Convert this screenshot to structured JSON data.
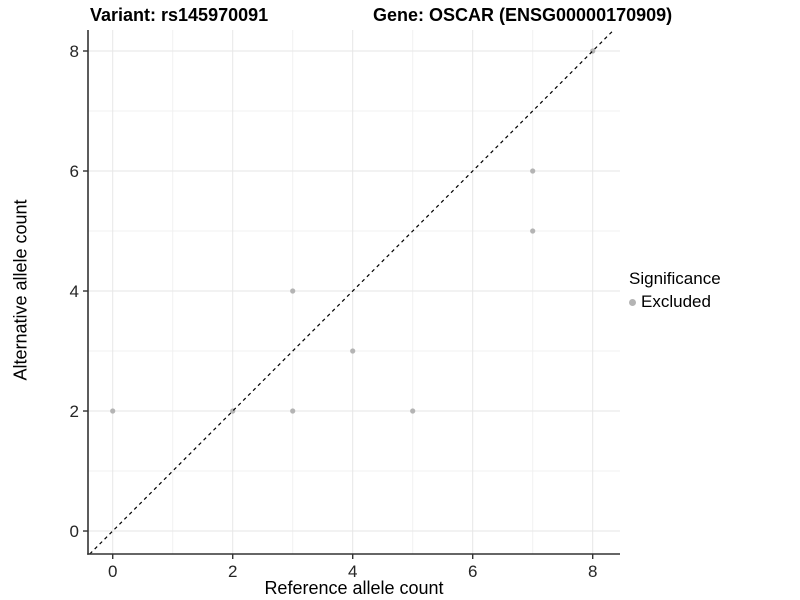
{
  "chart_data": {
    "type": "scatter",
    "title_left": "Variant: rs145970091",
    "title_right": "Gene: OSCAR (ENSG00000170909)",
    "xlabel": "Reference allele count",
    "ylabel": "Alternative allele count",
    "xlim": [
      -0.412,
      8.455
    ],
    "ylim": [
      -0.383,
      8.35
    ],
    "x_ticks": [
      0,
      2,
      4,
      6,
      8
    ],
    "y_ticks": [
      0,
      2,
      4,
      6,
      8
    ],
    "minor_ticks_x": [
      1,
      3,
      5,
      7
    ],
    "minor_ticks_y": [
      1,
      3,
      5,
      7
    ],
    "grid": "on",
    "legend_position": "right",
    "legend": {
      "title": "Significance",
      "items": [
        {
          "label": "Excluded",
          "color": "#b4b4b4"
        }
      ]
    },
    "series": [
      {
        "name": "Excluded",
        "color": "#b4b4b4",
        "points": [
          [
            0,
            2
          ],
          [
            2,
            2
          ],
          [
            3,
            2
          ],
          [
            3,
            4
          ],
          [
            4,
            3
          ],
          [
            5,
            2
          ],
          [
            7,
            5
          ],
          [
            7,
            6
          ],
          [
            8,
            8
          ]
        ]
      }
    ],
    "identity_line": {
      "slope": 1,
      "intercept": 0,
      "style": "dashed",
      "color": "#000000"
    },
    "colors": {
      "grid_major": "#e6e6e6",
      "grid_minor": "#f1f1f1",
      "axis_line": "#333333",
      "tick_mark": "#333333",
      "tick_label": "#262626",
      "point": "#b4b4b4",
      "background": "#ffffff"
    }
  }
}
